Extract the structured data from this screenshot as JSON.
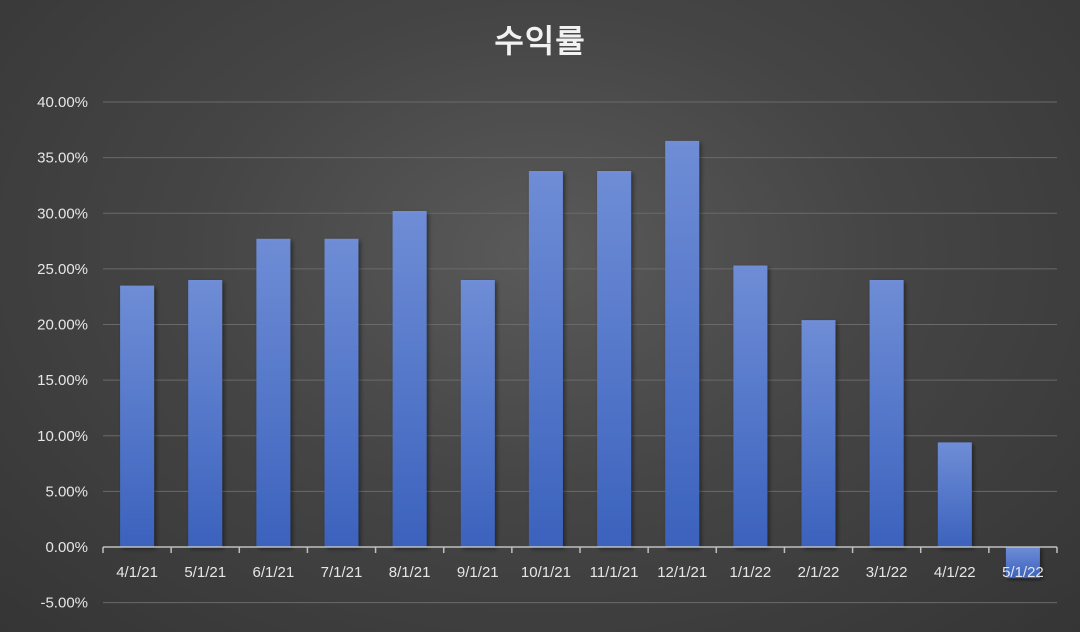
{
  "chart_data": {
    "type": "bar",
    "title": "수익률",
    "xlabel": "",
    "ylabel": "",
    "categories": [
      "4/1/21",
      "5/1/21",
      "6/1/21",
      "7/1/21",
      "8/1/21",
      "9/1/21",
      "10/1/21",
      "11/1/21",
      "12/1/21",
      "1/1/22",
      "2/1/22",
      "3/1/22",
      "4/1/22",
      "5/1/22"
    ],
    "values": [
      23.5,
      24.0,
      27.7,
      27.7,
      30.2,
      24.0,
      33.8,
      33.8,
      36.5,
      25.3,
      20.4,
      24.0,
      9.4,
      -2.8
    ],
    "ylim": [
      -5,
      40
    ],
    "yticks": [
      -5,
      0,
      5,
      10,
      15,
      20,
      25,
      30,
      35,
      40
    ],
    "ytick_labels": [
      "-5.00%",
      "0.00%",
      "5.00%",
      "10.00%",
      "15.00%",
      "20.00%",
      "25.00%",
      "30.00%",
      "35.00%",
      "40.00%"
    ],
    "grid": true,
    "legend": "none",
    "colors": {
      "bar_top": "#6f8dd6",
      "bar_bottom": "#3b62bd",
      "grid": "#6a6a6a",
      "axis": "#bfbfbf",
      "text": "#e6e6e6"
    }
  }
}
